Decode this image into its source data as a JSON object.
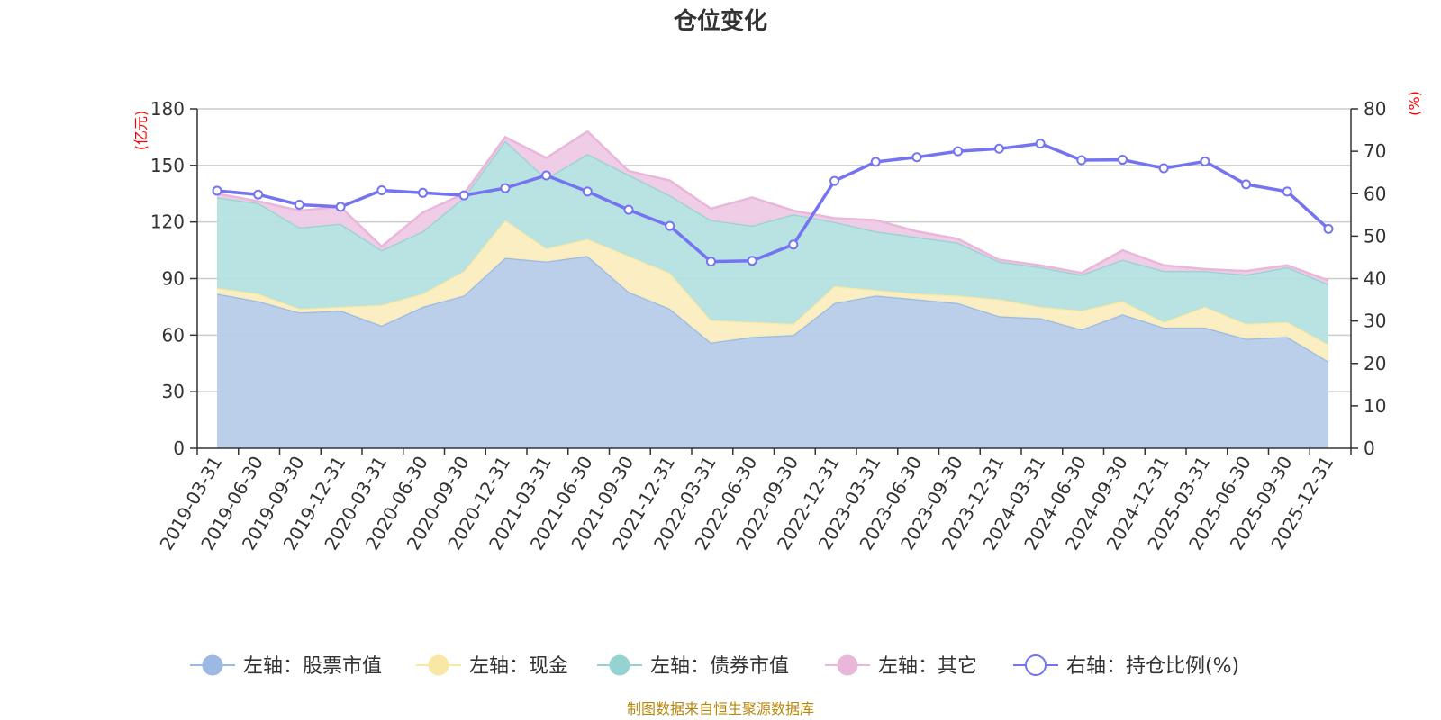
{
  "colors": {
    "stock": "#9bb9e2",
    "stock_fill": "#b8cce9",
    "cash": "#f8e8a4",
    "cash_fill": "#faedbf",
    "bond": "#95d3d3",
    "bond_fill": "#b4e1e0",
    "other": "#e9b7d9",
    "other_fill": "#efcae6",
    "ratio": "#7474f0",
    "grid": "#cccccc",
    "axis": "#333333",
    "unit": "#ff0000",
    "source": "#b8860b"
  },
  "chart_data": {
    "type": "area",
    "title": "仓位变化",
    "left_unit": "(亿元)",
    "right_unit": "(%)",
    "left_ylim": [
      0,
      180
    ],
    "right_ylim": [
      0,
      80
    ],
    "left_ticks": [
      0,
      30,
      60,
      90,
      120,
      150,
      180
    ],
    "right_ticks": [
      0,
      10,
      20,
      30,
      40,
      50,
      60,
      70,
      80
    ],
    "grid": true,
    "legend_position": "bottom",
    "source": "制图数据来自恒生聚源数据库",
    "categories": [
      "2019-03-31",
      "2019-06-30",
      "2019-09-30",
      "2019-12-31",
      "2020-03-31",
      "2020-06-30",
      "2020-09-30",
      "2020-12-31",
      "2021-03-31",
      "2021-06-30",
      "2021-09-30",
      "2021-12-31",
      "2022-03-31",
      "2022-06-30",
      "2022-09-30",
      "2022-12-31",
      "2023-03-31",
      "2023-06-30",
      "2023-09-30",
      "2023-12-31",
      "2024-03-31",
      "2024-06-30",
      "2024-09-30",
      "2024-12-31",
      "2025-03-31",
      "2025-06-30",
      "2025-09-30",
      "2025-12-31"
    ],
    "series": [
      {
        "name": "左轴：股票市值",
        "key": "stock",
        "axis": "left",
        "type": "stacked-area",
        "values": [
          82,
          78,
          72,
          73,
          65,
          75,
          81,
          101,
          99,
          102,
          83,
          74,
          56,
          59,
          60,
          77,
          81,
          79,
          77,
          70,
          69,
          63,
          71,
          64,
          64,
          58,
          59,
          46
        ]
      },
      {
        "name": "左轴：现金",
        "key": "cash",
        "axis": "left",
        "type": "stacked-area",
        "values": [
          3,
          4,
          2,
          2,
          11,
          7,
          13,
          20,
          7,
          9,
          19,
          19,
          12,
          8,
          6,
          9,
          3,
          3,
          4,
          9,
          6,
          10,
          7,
          3,
          11,
          8,
          8,
          9
        ]
      },
      {
        "name": "左轴：债券市值",
        "key": "bond",
        "axis": "left",
        "type": "stacked-area",
        "values": [
          48,
          48,
          43,
          44,
          29,
          33,
          39,
          42,
          37,
          45,
          43,
          41,
          53,
          51,
          58,
          34,
          31,
          30,
          28,
          20,
          21,
          19,
          22,
          27,
          19,
          26,
          29,
          32
        ]
      },
      {
        "name": "左轴：其它",
        "key": "other",
        "axis": "left",
        "type": "stacked-area",
        "values": [
          2,
          1,
          9,
          9,
          2,
          10,
          2,
          2,
          11,
          12,
          2,
          8,
          6,
          15,
          2,
          2,
          6,
          3,
          2,
          1,
          1,
          1,
          5,
          3,
          1,
          2,
          1,
          2
        ]
      },
      {
        "name": "右轴：持仓比例(%)",
        "key": "ratio",
        "axis": "right",
        "type": "line",
        "values": [
          60.7,
          59.8,
          57.4,
          56.9,
          60.8,
          60.2,
          59.6,
          61.3,
          64.3,
          60.5,
          56.2,
          52.4,
          44.0,
          44.2,
          48.0,
          63.0,
          67.5,
          68.6,
          70.0,
          70.6,
          71.8,
          67.9,
          68.0,
          66.0,
          67.6,
          62.2,
          60.5,
          51.7
        ]
      }
    ]
  }
}
